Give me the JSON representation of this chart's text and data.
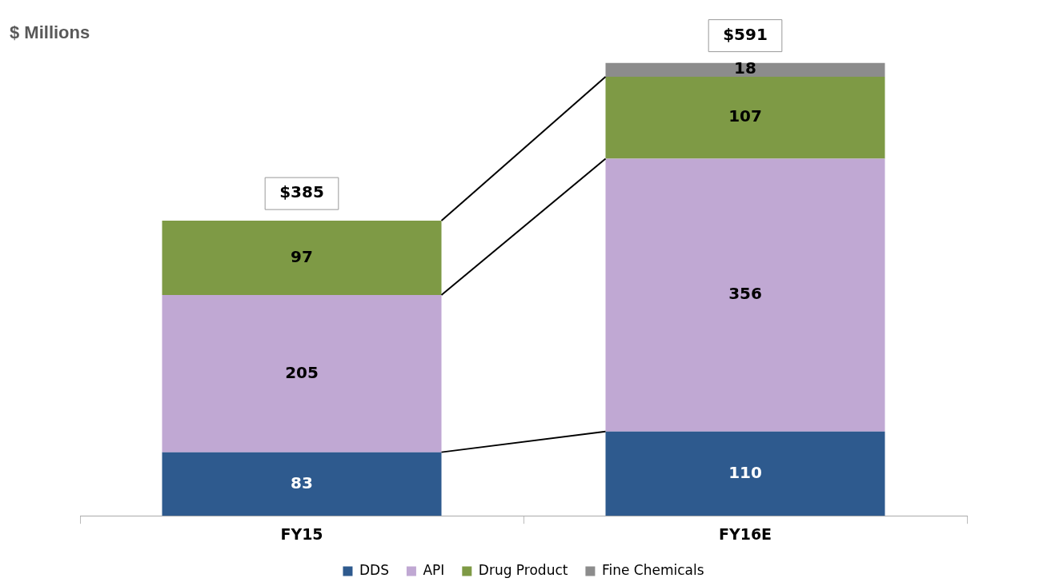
{
  "chart_data": {
    "type": "bar",
    "stacked": true,
    "ylabel": "$ Millions",
    "categories": [
      "FY15",
      "FY16E"
    ],
    "series": [
      {
        "name": "DDS",
        "color": "#2e5a8e",
        "values": [
          83,
          110
        ]
      },
      {
        "name": "API",
        "color": "#c0a8d3",
        "values": [
          205,
          356
        ]
      },
      {
        "name": "Drug Product",
        "color": "#7e9a45",
        "values": [
          97,
          107
        ]
      },
      {
        "name": "Fine Chemicals",
        "color": "#8c8c8c",
        "values": [
          null,
          18
        ]
      }
    ],
    "data_labels": true,
    "totals": [
      "$385",
      "$591"
    ],
    "legend": "bottom",
    "grid": false
  }
}
